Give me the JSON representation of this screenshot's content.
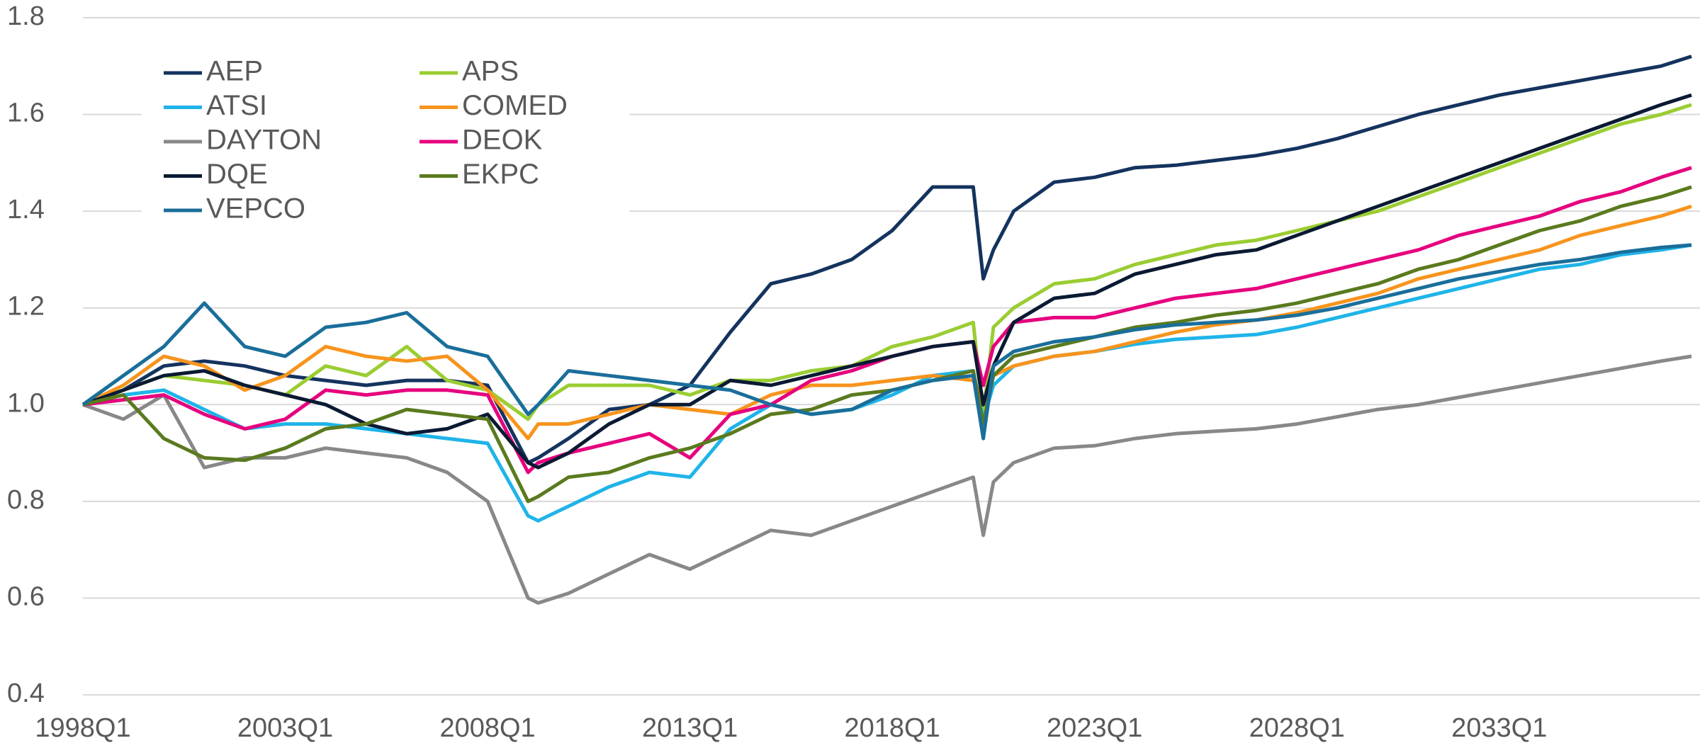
{
  "chart_data": {
    "type": "line",
    "x": [
      1998,
      1999,
      2000,
      2001,
      2002,
      2003,
      2004,
      2005,
      2006,
      2007,
      2008,
      2009,
      2009.25,
      2010,
      2011,
      2012,
      2013,
      2014,
      2015,
      2016,
      2017,
      2018,
      2019,
      2020,
      2020.25,
      2020.5,
      2021,
      2022,
      2023,
      2024,
      2025,
      2026,
      2027,
      2028,
      2029,
      2030,
      2031,
      2032,
      2033,
      2034,
      2035,
      2036,
      2037,
      2037.75
    ],
    "xlim": [
      1998,
      2037.75
    ],
    "xticks": [
      {
        "value": 1998,
        "label": "1998Q1"
      },
      {
        "value": 2003,
        "label": "2003Q1"
      },
      {
        "value": 2008,
        "label": "2008Q1"
      },
      {
        "value": 2013,
        "label": "2013Q1"
      },
      {
        "value": 2018,
        "label": "2018Q1"
      },
      {
        "value": 2023,
        "label": "2023Q1"
      },
      {
        "value": 2028,
        "label": "2028Q1"
      },
      {
        "value": 2033,
        "label": "2033Q1"
      }
    ],
    "ylim": [
      0.4,
      1.8
    ],
    "yticks": [
      0.4,
      0.6,
      0.8,
      {
        "value": 1,
        "label": "1.0"
      },
      1.2,
      1.4,
      1.6,
      1.8
    ],
    "grid": true,
    "legend": "upper left",
    "series": [
      {
        "name": "AEP",
        "color": "#14335e",
        "values": [
          1.0,
          1.03,
          1.08,
          1.09,
          1.08,
          1.06,
          1.05,
          1.04,
          1.05,
          1.05,
          1.04,
          0.88,
          0.89,
          0.93,
          0.99,
          1.0,
          1.04,
          1.15,
          1.25,
          1.27,
          1.3,
          1.36,
          1.45,
          1.45,
          1.26,
          1.32,
          1.4,
          1.46,
          1.47,
          1.49,
          1.495,
          1.505,
          1.515,
          1.53,
          1.55,
          1.575,
          1.6,
          1.62,
          1.64,
          1.655,
          1.67,
          1.685,
          1.7,
          1.72
        ]
      },
      {
        "name": "APS",
        "color": "#9acd32",
        "values": [
          1.0,
          1.03,
          1.06,
          1.05,
          1.04,
          1.02,
          1.08,
          1.06,
          1.12,
          1.05,
          1.03,
          0.97,
          1.0,
          1.04,
          1.04,
          1.04,
          1.02,
          1.05,
          1.05,
          1.07,
          1.08,
          1.12,
          1.14,
          1.17,
          0.98,
          1.16,
          1.2,
          1.25,
          1.26,
          1.29,
          1.31,
          1.33,
          1.34,
          1.36,
          1.38,
          1.4,
          1.43,
          1.46,
          1.49,
          1.52,
          1.55,
          1.58,
          1.6,
          1.62
        ]
      },
      {
        "name": "ATSI",
        "color": "#1fb4e8",
        "values": [
          1.0,
          1.02,
          1.03,
          0.99,
          0.95,
          0.96,
          0.96,
          0.95,
          0.94,
          0.93,
          0.92,
          0.77,
          0.76,
          0.79,
          0.83,
          0.86,
          0.85,
          0.95,
          1.0,
          0.98,
          0.99,
          1.02,
          1.06,
          1.07,
          0.97,
          1.04,
          1.08,
          1.1,
          1.11,
          1.125,
          1.135,
          1.14,
          1.145,
          1.16,
          1.18,
          1.2,
          1.22,
          1.24,
          1.26,
          1.28,
          1.29,
          1.31,
          1.32,
          1.33
        ]
      },
      {
        "name": "COMED",
        "color": "#f7941d",
        "values": [
          1.0,
          1.04,
          1.1,
          1.08,
          1.03,
          1.06,
          1.12,
          1.1,
          1.09,
          1.1,
          1.03,
          0.93,
          0.96,
          0.96,
          0.98,
          1.0,
          0.99,
          0.98,
          1.02,
          1.04,
          1.04,
          1.05,
          1.06,
          1.05,
          1.0,
          1.06,
          1.08,
          1.1,
          1.11,
          1.13,
          1.15,
          1.165,
          1.175,
          1.19,
          1.21,
          1.23,
          1.26,
          1.28,
          1.3,
          1.32,
          1.35,
          1.37,
          1.39,
          1.41
        ]
      },
      {
        "name": "DAYTON",
        "color": "#888888",
        "values": [
          1.0,
          0.97,
          1.02,
          0.87,
          0.89,
          0.89,
          0.91,
          0.9,
          0.89,
          0.86,
          0.8,
          0.6,
          0.59,
          0.61,
          0.65,
          0.69,
          0.66,
          0.7,
          0.74,
          0.73,
          0.76,
          0.79,
          0.82,
          0.85,
          0.73,
          0.84,
          0.88,
          0.91,
          0.915,
          0.93,
          0.94,
          0.945,
          0.95,
          0.96,
          0.975,
          0.99,
          1.0,
          1.015,
          1.03,
          1.045,
          1.06,
          1.075,
          1.09,
          1.1
        ]
      },
      {
        "name": "DEOK",
        "color": "#e6007e",
        "values": [
          1.0,
          1.01,
          1.02,
          0.98,
          0.95,
          0.97,
          1.03,
          1.02,
          1.03,
          1.03,
          1.02,
          0.86,
          0.88,
          0.9,
          0.92,
          0.94,
          0.89,
          0.98,
          1.0,
          1.05,
          1.07,
          1.1,
          1.12,
          1.13,
          1.04,
          1.12,
          1.17,
          1.18,
          1.18,
          1.2,
          1.22,
          1.23,
          1.24,
          1.26,
          1.28,
          1.3,
          1.32,
          1.35,
          1.37,
          1.39,
          1.42,
          1.44,
          1.47,
          1.49
        ]
      },
      {
        "name": "DQE",
        "color": "#0b1a33",
        "values": [
          1.0,
          1.03,
          1.06,
          1.07,
          1.04,
          1.02,
          1.0,
          0.96,
          0.94,
          0.95,
          0.98,
          0.88,
          0.87,
          0.9,
          0.96,
          1.0,
          1.0,
          1.05,
          1.04,
          1.06,
          1.08,
          1.1,
          1.12,
          1.13,
          1.0,
          1.08,
          1.17,
          1.22,
          1.23,
          1.27,
          1.29,
          1.31,
          1.32,
          1.35,
          1.38,
          1.41,
          1.44,
          1.47,
          1.5,
          1.53,
          1.56,
          1.59,
          1.62,
          1.64
        ]
      },
      {
        "name": "EKPC",
        "color": "#5a7a1e",
        "values": [
          1.0,
          1.02,
          0.93,
          0.89,
          0.885,
          0.91,
          0.95,
          0.96,
          0.99,
          0.98,
          0.97,
          0.8,
          0.81,
          0.85,
          0.86,
          0.89,
          0.91,
          0.94,
          0.98,
          0.99,
          1.02,
          1.03,
          1.05,
          1.07,
          0.96,
          1.06,
          1.1,
          1.12,
          1.14,
          1.16,
          1.17,
          1.185,
          1.195,
          1.21,
          1.23,
          1.25,
          1.28,
          1.3,
          1.33,
          1.36,
          1.38,
          1.41,
          1.43,
          1.45
        ]
      },
      {
        "name": "VEPCO",
        "color": "#1a6e9a",
        "values": [
          1.0,
          1.06,
          1.12,
          1.21,
          1.12,
          1.1,
          1.16,
          1.17,
          1.19,
          1.12,
          1.1,
          0.98,
          1.0,
          1.07,
          1.06,
          1.05,
          1.04,
          1.03,
          1.0,
          0.98,
          0.99,
          1.03,
          1.05,
          1.06,
          0.93,
          1.08,
          1.11,
          1.13,
          1.14,
          1.155,
          1.165,
          1.17,
          1.175,
          1.185,
          1.2,
          1.22,
          1.24,
          1.26,
          1.275,
          1.29,
          1.3,
          1.315,
          1.325,
          1.33
        ]
      }
    ]
  }
}
